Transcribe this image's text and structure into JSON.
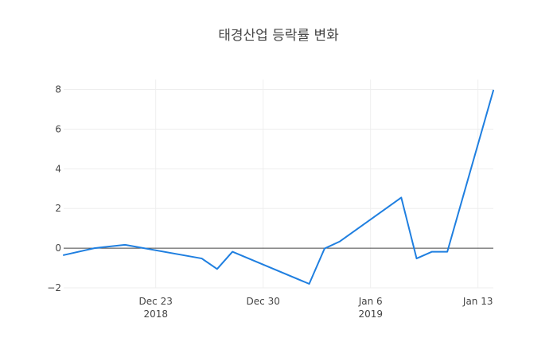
{
  "chart_data": {
    "type": "line",
    "title": "태경산업 등락률 변화",
    "xlabel": "",
    "ylabel": "",
    "x_axis": {
      "type": "date",
      "range": [
        "2018-12-17",
        "2019-01-14"
      ],
      "ticks": [
        {
          "date": "2018-12-23",
          "label": "Dec 23",
          "year_label": "2018"
        },
        {
          "date": "2018-12-30",
          "label": "Dec 30",
          "year_label": ""
        },
        {
          "date": "2019-01-06",
          "label": "Jan 6",
          "year_label": "2019"
        },
        {
          "date": "2019-01-13",
          "label": "Jan 13",
          "year_label": ""
        }
      ]
    },
    "y_axis": {
      "range": [
        -2.0,
        8.5
      ],
      "ticks": [
        -2,
        0,
        2,
        4,
        6,
        8
      ],
      "tick_labels": [
        "−2",
        "0",
        "2",
        "4",
        "6",
        "8"
      ]
    },
    "grid": true,
    "zeroline": true,
    "series": [
      {
        "color": "#1f7fe0",
        "points": [
          {
            "x": "2018-12-17",
            "y": -0.35
          },
          {
            "x": "2018-12-19",
            "y": 0.0
          },
          {
            "x": "2018-12-21",
            "y": 0.17
          },
          {
            "x": "2018-12-26",
            "y": -0.52
          },
          {
            "x": "2018-12-27",
            "y": -1.05
          },
          {
            "x": "2018-12-28",
            "y": -0.18
          },
          {
            "x": "2019-01-02",
            "y": -1.8
          },
          {
            "x": "2019-01-03",
            "y": -0.02
          },
          {
            "x": "2019-01-04",
            "y": 0.34
          },
          {
            "x": "2019-01-08",
            "y": 2.55
          },
          {
            "x": "2019-01-09",
            "y": -0.52
          },
          {
            "x": "2019-01-10",
            "y": -0.18
          },
          {
            "x": "2019-01-11",
            "y": -0.18
          },
          {
            "x": "2019-01-14",
            "y": 7.95
          }
        ]
      }
    ]
  }
}
